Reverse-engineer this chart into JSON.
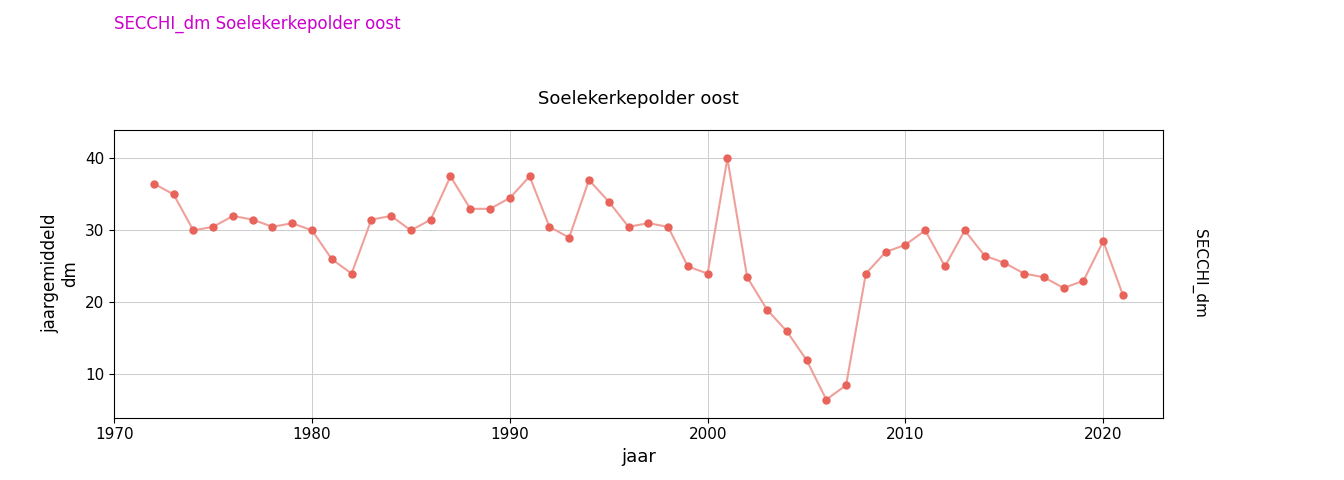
{
  "years": [
    1972,
    1973,
    1974,
    1975,
    1976,
    1977,
    1978,
    1979,
    1980,
    1981,
    1982,
    1983,
    1984,
    1985,
    1986,
    1987,
    1988,
    1989,
    1990,
    1991,
    1992,
    1993,
    1994,
    1995,
    1996,
    1997,
    1998,
    1999,
    2000,
    2001,
    2002,
    2003,
    2004,
    2005,
    2006,
    2007,
    2008,
    2009,
    2010,
    2011,
    2012,
    2013,
    2014,
    2015,
    2016,
    2017,
    2018,
    2019,
    2020,
    2021
  ],
  "values": [
    36.5,
    35.0,
    30.0,
    30.5,
    32.0,
    31.5,
    30.5,
    31.0,
    30.0,
    26.0,
    24.0,
    31.5,
    32.0,
    30.0,
    31.5,
    37.5,
    33.0,
    33.0,
    34.5,
    37.5,
    30.5,
    29.0,
    37.0,
    34.0,
    30.5,
    31.0,
    30.5,
    25.0,
    24.0,
    40.0,
    23.5,
    19.0,
    16.0,
    12.0,
    6.5,
    8.5,
    24.0,
    27.0,
    28.0,
    30.0,
    25.0,
    30.0,
    26.5,
    25.5,
    24.0,
    23.5,
    22.0,
    23.0,
    28.5,
    21.0
  ],
  "line_color": "#F0A09A",
  "marker_color": "#E8635A",
  "marker_size": 5,
  "line_width": 1.5,
  "title_text": "SECCHI_dm Soelekerkepolder oost",
  "title_color": "#CC00CC",
  "panel_title": "Soelekerkepolder oost",
  "xlabel": "jaar",
  "ylabel_line1": "jaargemiddeld",
  "ylabel_line2": "dm",
  "right_label": "SECCHI_dm",
  "xlim": [
    1970,
    2023
  ],
  "ylim": [
    4,
    44
  ],
  "yticks": [
    10,
    20,
    30,
    40
  ],
  "xticks": [
    1970,
    1980,
    1990,
    2000,
    2010,
    2020
  ],
  "plot_bg_color": "#FFFFFF",
  "grid_color": "#CCCCCC",
  "panel_header_color": "#DCDCDC",
  "right_strip_color": "#DCDCDC"
}
